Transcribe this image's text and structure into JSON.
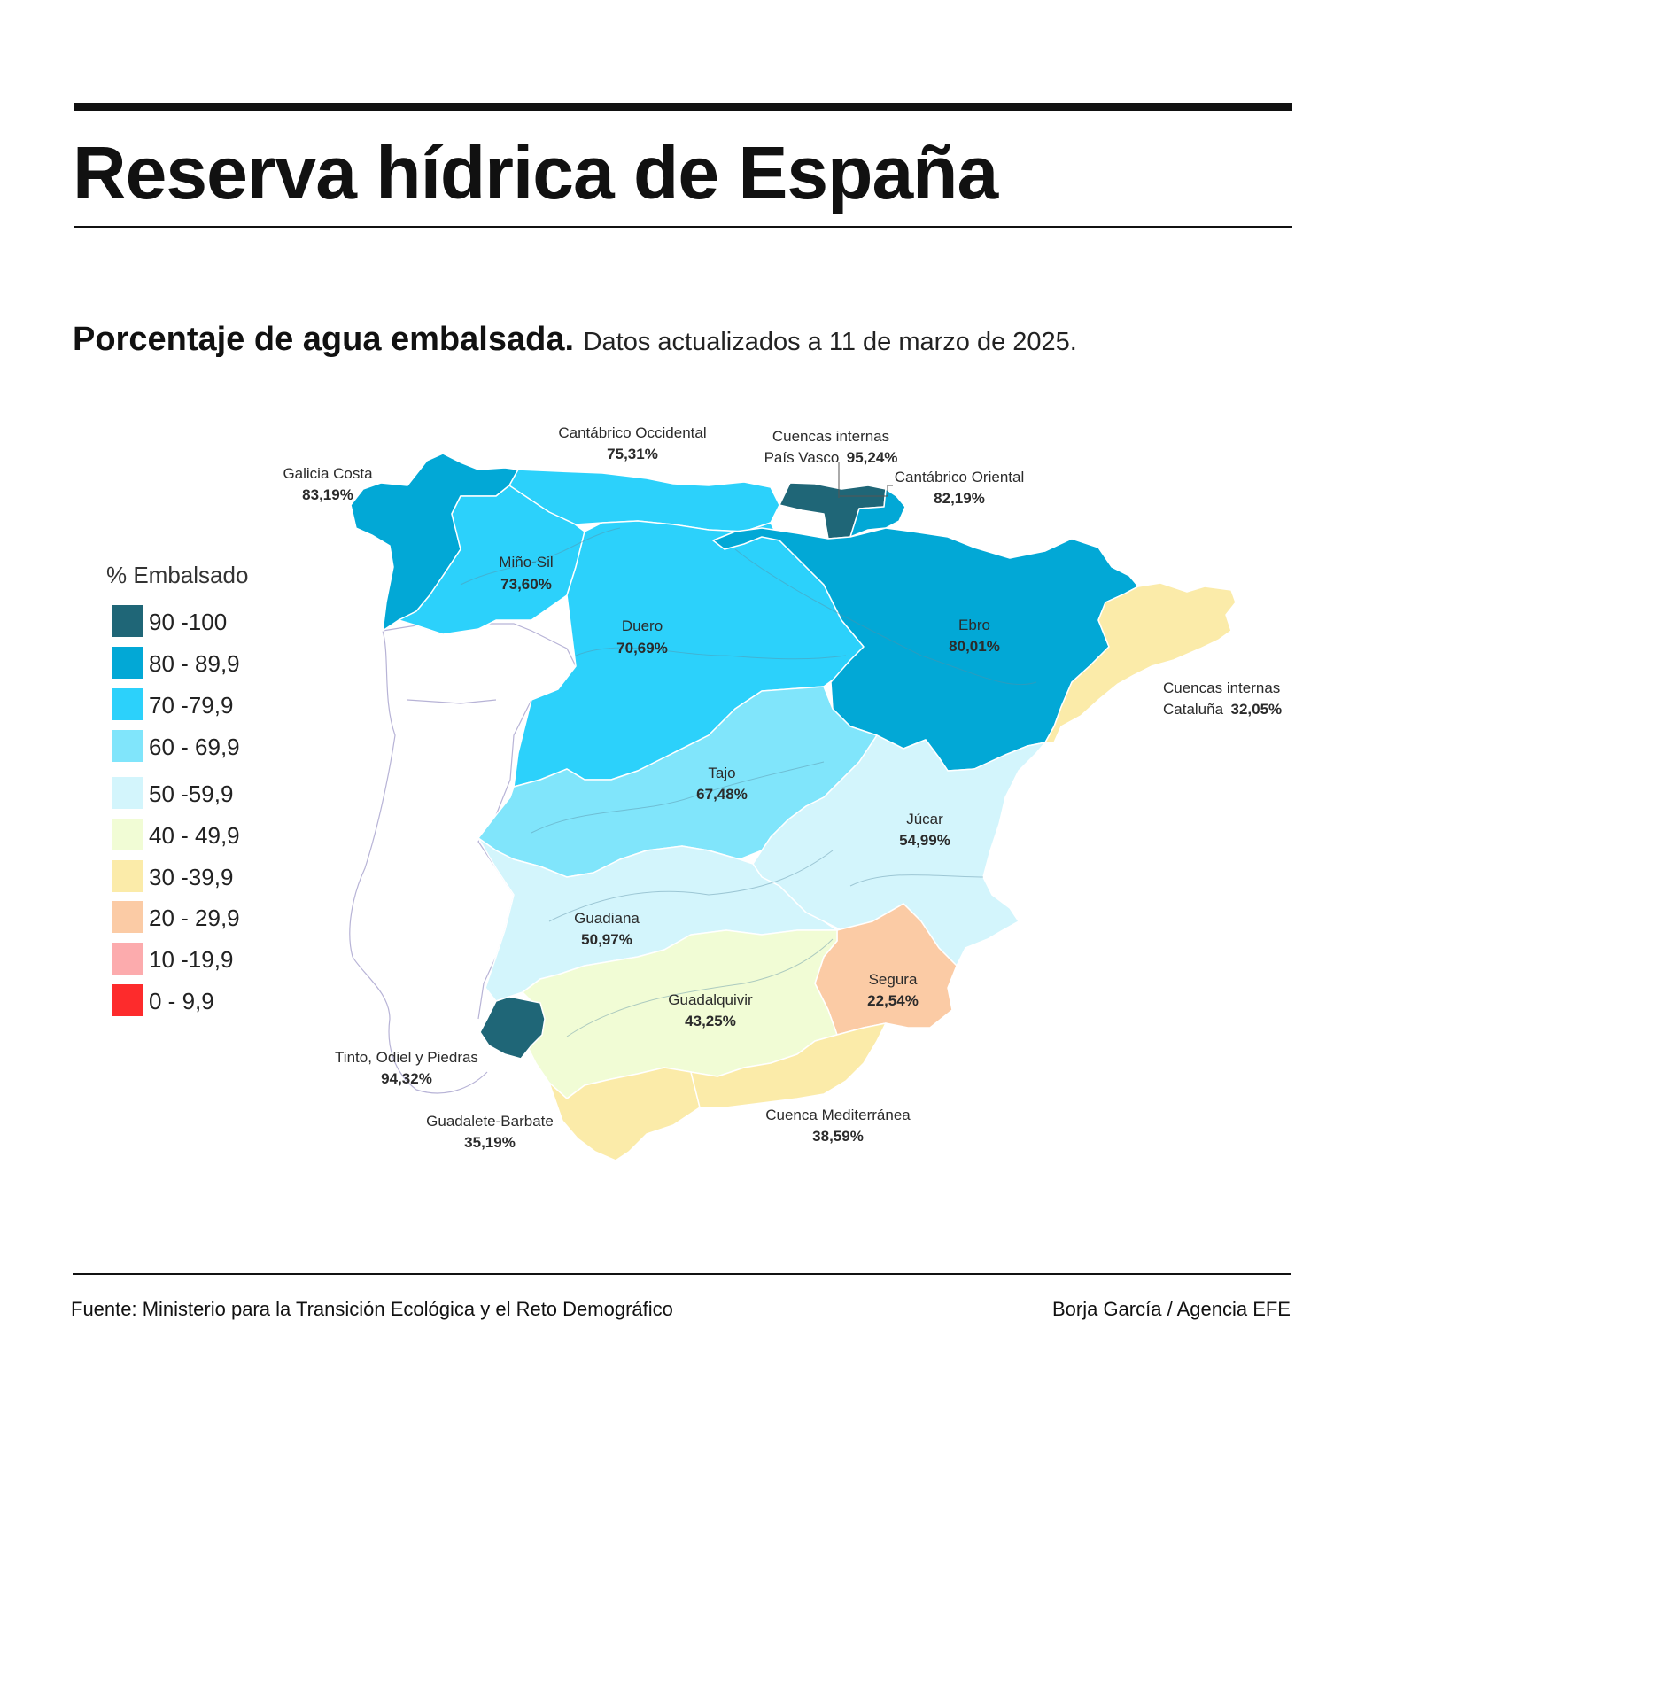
{
  "title": "Reserva hídrica de España",
  "subtitle": {
    "bold": "Porcentaje de agua embalsada.",
    "date": "Datos actualizados a 11 de marzo de 2025."
  },
  "legend": {
    "title": "% Embalsado",
    "items": [
      {
        "label": "90 -100",
        "color": "#1f6677"
      },
      {
        "label": "80 - 89,9",
        "color": "#02a8d6"
      },
      {
        "label": "70 -79,9",
        "color": "#2cd1fb"
      },
      {
        "label": "60 - 69,9",
        "color": "#80e5fb"
      },
      {
        "label": "50 -59,9",
        "color": "#d3f5fc"
      },
      {
        "label": "40 - 49,9",
        "color": "#f1fcd5"
      },
      {
        "label": "30 -39,9",
        "color": "#fbeba9"
      },
      {
        "label": "20 - 29,9",
        "color": "#fbcba5"
      },
      {
        "label": "10 -19,9",
        "color": "#fcabad"
      },
      {
        "label": "0 - 9,9",
        "color": "#fd2b2c"
      }
    ]
  },
  "basins": [
    {
      "name": "Galicia Costa",
      "value": "83,19%"
    },
    {
      "name": "Cantábrico Occidental",
      "value": "75,31%"
    },
    {
      "name": "Cuencas internas",
      "name2": "País Vasco",
      "value": "95,24%"
    },
    {
      "name": "Cantábrico Oriental",
      "value": "82,19%"
    },
    {
      "name": "Miño-Sil",
      "value": "73,60%"
    },
    {
      "name": "Duero",
      "value": "70,69%"
    },
    {
      "name": "Ebro",
      "value": "80,01%"
    },
    {
      "name": "Cuencas internas",
      "name2": "Cataluña",
      "value": "32,05%"
    },
    {
      "name": "Tajo",
      "value": "67,48%"
    },
    {
      "name": "Júcar",
      "value": "54,99%"
    },
    {
      "name": "Guadiana",
      "value": "50,97%"
    },
    {
      "name": "Segura",
      "value": "22,54%"
    },
    {
      "name": "Guadalquivir",
      "value": "43,25%"
    },
    {
      "name": "Tinto, Odiel y Piedras",
      "value": "94,32%"
    },
    {
      "name": "Guadalete-Barbate",
      "value": "35,19%"
    },
    {
      "name": "Cuenca Mediterránea",
      "value": "38,59%"
    }
  ],
  "footer": {
    "source": "Fuente: Ministerio para la Transición Ecológica y el Reto Demográfico",
    "credit": "Borja García / Agencia EFE"
  }
}
